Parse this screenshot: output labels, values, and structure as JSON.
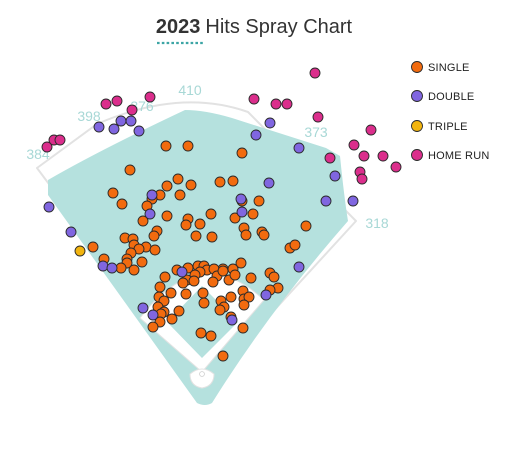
{
  "chart_data": {
    "type": "scatter",
    "title_year": "2023",
    "title_text": "Hits Spray Chart",
    "distance_labels": [
      "410",
      "398",
      "376",
      "384",
      "373",
      "318"
    ],
    "legend": [
      {
        "key": "single",
        "label": "SINGLE",
        "color": "#f26b0f"
      },
      {
        "key": "double",
        "label": "DOUBLE",
        "color": "#8066e0"
      },
      {
        "key": "triple",
        "label": "TRIPLE",
        "color": "#f2b40f"
      },
      {
        "key": "home_run",
        "label": "HOME RUN",
        "color": "#db2e8c"
      }
    ],
    "colors": {
      "field": "#b5e1de",
      "infield_dirt": "#ffffff",
      "wall": "#e2e2e2",
      "title_underline": "#3ca5a5",
      "distance_text": "#a8d8d6"
    },
    "hits": {
      "single": [
        [
          166,
          146
        ],
        [
          188,
          146
        ],
        [
          242,
          153
        ],
        [
          130,
          170
        ],
        [
          178,
          179
        ],
        [
          167,
          186
        ],
        [
          191,
          185
        ],
        [
          220,
          182
        ],
        [
          233,
          181
        ],
        [
          113,
          193
        ],
        [
          160,
          195
        ],
        [
          180,
          195
        ],
        [
          152,
          199
        ],
        [
          122,
          204
        ],
        [
          147,
          206
        ],
        [
          242,
          201
        ],
        [
          259,
          201
        ],
        [
          211,
          214
        ],
        [
          253,
          214
        ],
        [
          167,
          216
        ],
        [
          188,
          219
        ],
        [
          235,
          218
        ],
        [
          143,
          221
        ],
        [
          186,
          225
        ],
        [
          200,
          224
        ],
        [
          157,
          231
        ],
        [
          244,
          228
        ],
        [
          262,
          232
        ],
        [
          306,
          226
        ],
        [
          196,
          236
        ],
        [
          212,
          237
        ],
        [
          246,
          235
        ],
        [
          264,
          235
        ],
        [
          154,
          236
        ],
        [
          125,
          238
        ],
        [
          133,
          239
        ],
        [
          146,
          247
        ],
        [
          93,
          247
        ],
        [
          134,
          245
        ],
        [
          139,
          249
        ],
        [
          155,
          250
        ],
        [
          290,
          248
        ],
        [
          295,
          245
        ],
        [
          131,
          253
        ],
        [
          104,
          259
        ],
        [
          127,
          259
        ],
        [
          127,
          263
        ],
        [
          142,
          262
        ],
        [
          121,
          268
        ],
        [
          134,
          270
        ],
        [
          198,
          266
        ],
        [
          204,
          266
        ],
        [
          207,
          270
        ],
        [
          223,
          269
        ],
        [
          214,
          269
        ],
        [
          233,
          269
        ],
        [
          200,
          272
        ],
        [
          188,
          268
        ],
        [
          177,
          270
        ],
        [
          241,
          263
        ],
        [
          165,
          277
        ],
        [
          195,
          275
        ],
        [
          217,
          276
        ],
        [
          223,
          271
        ],
        [
          229,
          280
        ],
        [
          235,
          275
        ],
        [
          251,
          278
        ],
        [
          187,
          280
        ],
        [
          270,
          273
        ],
        [
          274,
          277
        ],
        [
          194,
          281
        ],
        [
          160,
          287
        ],
        [
          183,
          283
        ],
        [
          213,
          282
        ],
        [
          278,
          288
        ],
        [
          171,
          293
        ],
        [
          186,
          294
        ],
        [
          203,
          293
        ],
        [
          243,
          291
        ],
        [
          270,
          290
        ],
        [
          159,
          297
        ],
        [
          164,
          301
        ],
        [
          231,
          297
        ],
        [
          244,
          299
        ],
        [
          204,
          303
        ],
        [
          221,
          301
        ],
        [
          158,
          307
        ],
        [
          224,
          307
        ],
        [
          249,
          297
        ],
        [
          244,
          305
        ],
        [
          164,
          312
        ],
        [
          179,
          311
        ],
        [
          161,
          314
        ],
        [
          220,
          310
        ],
        [
          172,
          319
        ],
        [
          231,
          317
        ],
        [
          160,
          322
        ],
        [
          201,
          333
        ],
        [
          211,
          336
        ],
        [
          243,
          328
        ],
        [
          153,
          327
        ],
        [
          223,
          356
        ]
      ],
      "double": [
        [
          99,
          127
        ],
        [
          121,
          121
        ],
        [
          131,
          121
        ],
        [
          114,
          129
        ],
        [
          139,
          131
        ],
        [
          256,
          135
        ],
        [
          270,
          123
        ],
        [
          299,
          148
        ],
        [
          152,
          195
        ],
        [
          269,
          183
        ],
        [
          241,
          199
        ],
        [
          49,
          207
        ],
        [
          150,
          214
        ],
        [
          242,
          212
        ],
        [
          71,
          232
        ],
        [
          103,
          266
        ],
        [
          112,
          268
        ],
        [
          299,
          267
        ],
        [
          182,
          272
        ],
        [
          335,
          176
        ],
        [
          353,
          201
        ],
        [
          326,
          201
        ],
        [
          143,
          308
        ],
        [
          153,
          315
        ],
        [
          266,
          295
        ],
        [
          232,
          320
        ]
      ],
      "triple": [
        [
          80,
          251
        ]
      ],
      "home_run": [
        [
          315,
          73
        ],
        [
          106,
          104
        ],
        [
          117,
          101
        ],
        [
          150,
          97
        ],
        [
          132,
          110
        ],
        [
          254,
          99
        ],
        [
          276,
          104
        ],
        [
          287,
          104
        ],
        [
          318,
          117
        ],
        [
          371,
          130
        ],
        [
          354,
          145
        ],
        [
          364,
          156
        ],
        [
          330,
          158
        ],
        [
          360,
          172
        ],
        [
          362,
          179
        ],
        [
          383,
          156
        ],
        [
          396,
          167
        ],
        [
          47,
          147
        ],
        [
          54,
          140
        ],
        [
          60,
          140
        ]
      ]
    }
  }
}
